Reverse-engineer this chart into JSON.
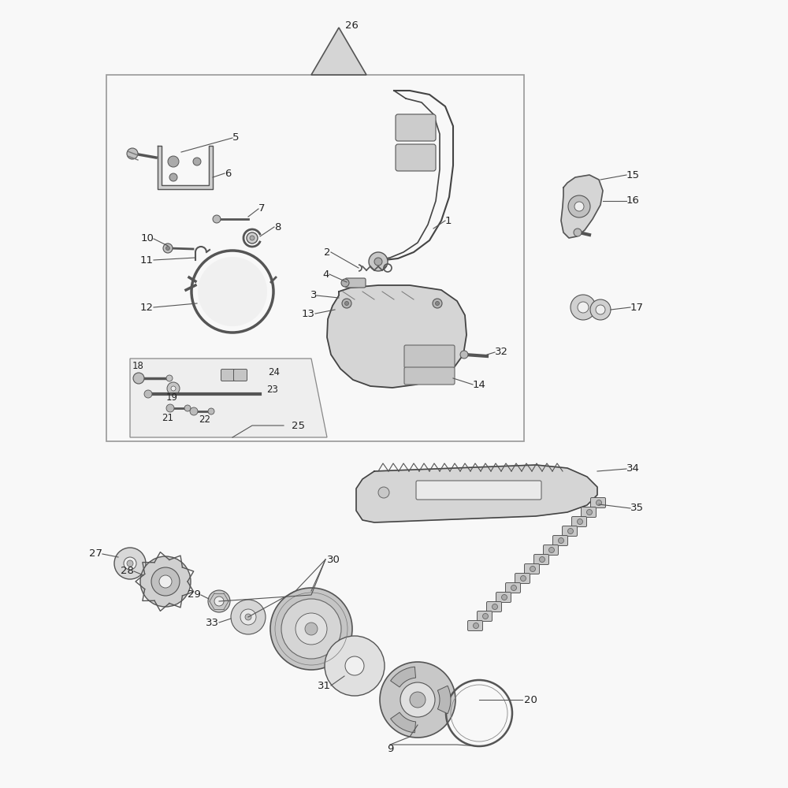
{
  "bg_color": "#ffffff",
  "line_color": "#444444",
  "text_color": "#222222",
  "label_fontsize": 9.5,
  "part_fill": "#e8e8e8",
  "part_fill2": "#d0d0d0",
  "part_edge": "#444444"
}
